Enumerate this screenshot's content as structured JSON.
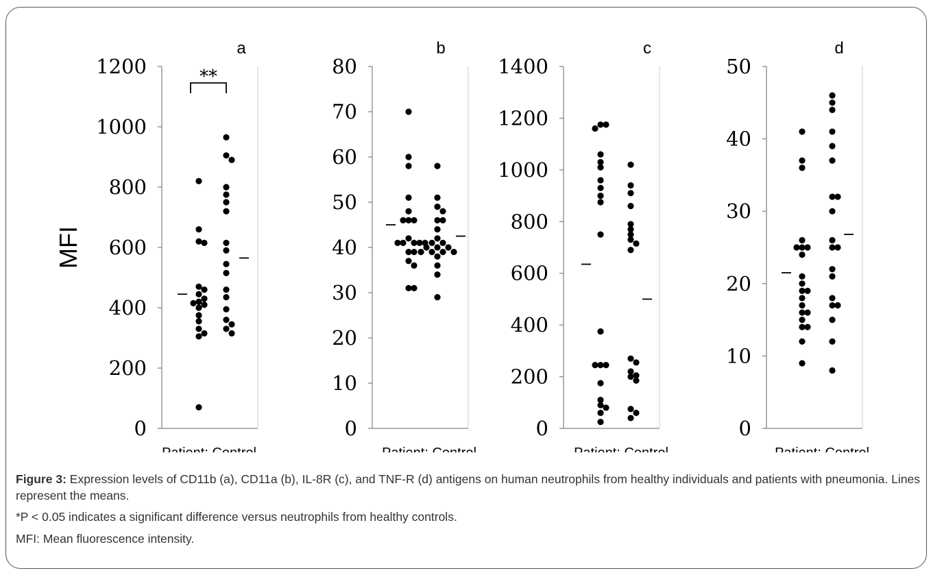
{
  "figure": {
    "caption_label": "Figure 3:",
    "caption_text": "Expression levels of CD11b (a), CD11a (b), IL-8R (c), and TNF-R (d) antigens on human neutrophils from healthy individuals and patients with pneumonia. Lines represent the means.",
    "note_1": "*P < 0.05 indicates a significant difference versus neutrophils from healthy controls.",
    "note_2": "MFI: Mean fluorescence intensity."
  },
  "colors": {
    "points": "#000000",
    "axis": "#888888",
    "frame": "#555555"
  },
  "chart_data": [
    {
      "type": "scatter",
      "panel": "a",
      "ylabel": "MFI",
      "xlabel": "Patient: Control",
      "ylim": [
        0,
        1200
      ],
      "yticks": [
        0,
        200,
        400,
        600,
        800,
        1000,
        1200
      ],
      "significance": "**",
      "series": [
        {
          "group": "Patient",
          "mean": 445,
          "values": [
            820,
            660,
            620,
            615,
            470,
            460,
            445,
            430,
            420,
            415,
            410,
            400,
            375,
            355,
            330,
            315,
            305,
            70
          ]
        },
        {
          "group": "Control",
          "mean": 565,
          "values": [
            965,
            905,
            890,
            800,
            775,
            750,
            720,
            615,
            590,
            545,
            515,
            460,
            435,
            395,
            360,
            345,
            330,
            315
          ]
        }
      ]
    },
    {
      "type": "scatter",
      "panel": "b",
      "xlabel": "Patient: Control",
      "ylim": [
        0,
        80
      ],
      "yticks": [
        0,
        10,
        20,
        30,
        40,
        50,
        60,
        70,
        80
      ],
      "series": [
        {
          "group": "Patient",
          "mean": 45,
          "values": [
            70,
            60,
            58,
            51,
            48,
            46,
            46,
            46,
            42,
            41,
            41,
            41,
            41,
            41,
            39,
            39,
            37,
            36,
            31,
            31
          ]
        },
        {
          "group": "Control",
          "mean": 42.5,
          "values": [
            58,
            51,
            49,
            48,
            46,
            46,
            44,
            42,
            41,
            41,
            40,
            40,
            40,
            39,
            39,
            39,
            39,
            38,
            36,
            34,
            29
          ]
        }
      ]
    },
    {
      "type": "scatter",
      "panel": "c",
      "xlabel": "Patient: Control",
      "ylim": [
        0,
        1400
      ],
      "yticks": [
        0,
        200,
        400,
        600,
        800,
        1000,
        1200,
        1400
      ],
      "series": [
        {
          "group": "Patient",
          "mean": 635,
          "values": [
            1175,
            1175,
            1160,
            1060,
            1030,
            1010,
            960,
            930,
            900,
            875,
            750,
            375,
            245,
            245,
            245,
            175,
            110,
            90,
            80,
            60,
            25
          ]
        },
        {
          "group": "Control",
          "mean": 500,
          "values": [
            1020,
            940,
            910,
            860,
            790,
            770,
            750,
            730,
            715,
            690,
            270,
            255,
            220,
            205,
            200,
            185,
            75,
            60,
            40
          ]
        }
      ]
    },
    {
      "type": "scatter",
      "panel": "d",
      "xlabel": "Patient: Control",
      "ylim": [
        0,
        50
      ],
      "yticks": [
        0,
        10,
        20,
        30,
        40,
        50
      ],
      "series": [
        {
          "group": "Patient",
          "mean": 21.5,
          "values": [
            41,
            37,
            36,
            26,
            25,
            25,
            25,
            24,
            21,
            20,
            19,
            19,
            18,
            17,
            16,
            16,
            15,
            14,
            14,
            12,
            9
          ]
        },
        {
          "group": "Control",
          "mean": 26.8,
          "values": [
            46,
            45,
            44,
            41,
            39,
            37,
            32,
            32,
            30,
            26,
            25,
            25,
            22,
            21,
            18,
            17,
            17,
            15,
            12,
            8
          ]
        }
      ]
    }
  ]
}
